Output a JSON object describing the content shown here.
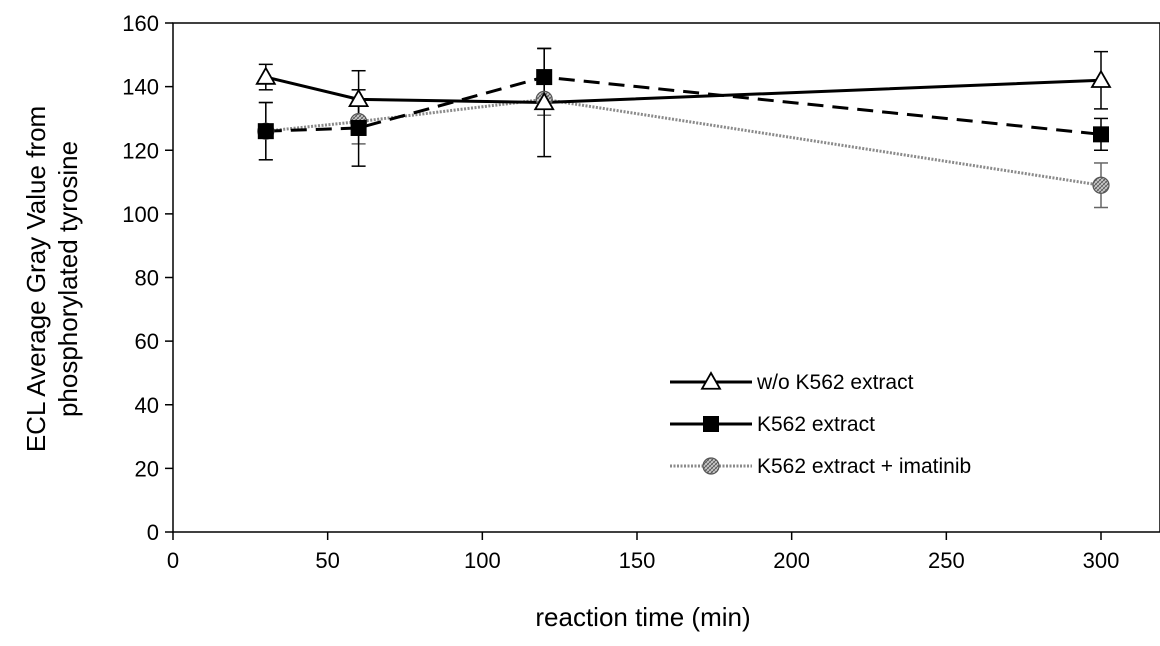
{
  "chart_data": {
    "type": "line",
    "title": "",
    "xlabel": "reaction time (min)",
    "ylabel": "ECL Average Gray Value from phosphorylated tyrosine",
    "ylabel_lines": [
      "ECL Average Gray Value from",
      "phosphorylated tyrosine"
    ],
    "xlim": [
      0,
      320
    ],
    "ylim": [
      0,
      160
    ],
    "x_ticks": [
      0,
      50,
      100,
      150,
      200,
      250,
      300
    ],
    "y_ticks": [
      0,
      20,
      40,
      60,
      80,
      100,
      120,
      140,
      160
    ],
    "x_tick_labels": [
      "0",
      "50",
      "100",
      "150",
      "200",
      "250",
      "300"
    ],
    "y_tick_labels": [
      "0",
      "20",
      "40",
      "60",
      "80",
      "100",
      "120",
      "140",
      "160"
    ],
    "grid": false,
    "legend_position": "lower-right",
    "series": [
      {
        "name": "w/o K562 extract",
        "x": [
          30,
          60,
          120,
          300
        ],
        "y": [
          143,
          136,
          135,
          142
        ],
        "error": [
          4,
          9,
          17,
          9
        ],
        "marker": "triangle-open",
        "line_style": "solid",
        "color": "#000000"
      },
      {
        "name": "K562 extract",
        "x": [
          30,
          60,
          120,
          300
        ],
        "y": [
          126,
          127,
          143,
          125
        ],
        "error": [
          9,
          12,
          9,
          5
        ],
        "marker": "square-filled",
        "line_style": "dashed",
        "color": "#000000"
      },
      {
        "name": "K562 extract + imatinib",
        "x": [
          30,
          60,
          120,
          300
        ],
        "y": [
          126,
          129,
          136,
          109
        ],
        "error": [
          9,
          7,
          5,
          7
        ],
        "marker": "circle-hatched",
        "line_style": "dotted-gray",
        "color": "#8a8a8a"
      }
    ]
  }
}
